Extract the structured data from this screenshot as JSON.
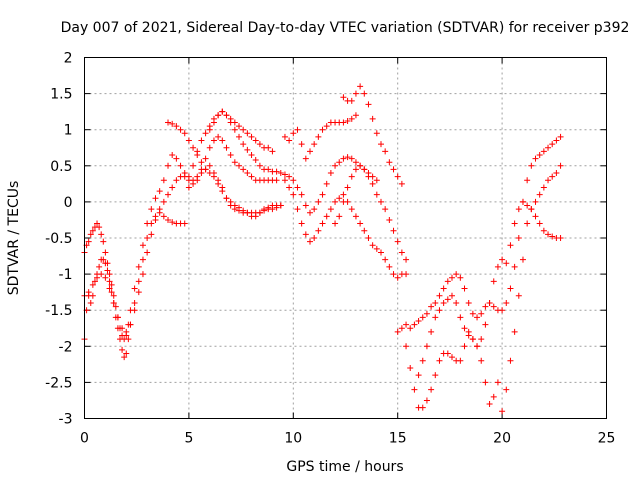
{
  "chart_data": {
    "type": "scatter",
    "title": "Day 007 of 2021, Sidereal Day-to-day VTEC variation (SDTVAR) for receiver p392",
    "xlabel": "GPS time / hours",
    "ylabel": "SDTVAR / TECUs",
    "xlim": [
      0,
      25
    ],
    "ylim": [
      -3,
      2
    ],
    "xticks": [
      0,
      5,
      10,
      15,
      20,
      25
    ],
    "yticks": [
      -3,
      -2.5,
      -2,
      -1.5,
      -1,
      -0.5,
      0,
      0.5,
      1,
      1.5,
      2
    ],
    "xtick_labels": [
      "0",
      "5",
      "10",
      "15",
      "20",
      "25"
    ],
    "ytick_labels": [
      "-3",
      "-2.5",
      "-2",
      "-1.5",
      "-1",
      "-0.5",
      "0",
      "0.5",
      "1",
      "1.5",
      "2"
    ],
    "grid": true,
    "marker": "plus",
    "color": "#ff0000",
    "series": [
      {
        "x": [
          0.0,
          0.1,
          0.2,
          0.3,
          0.4,
          0.5,
          0.6,
          0.7,
          0.8,
          0.9,
          1.0,
          1.1,
          1.2,
          1.3,
          1.4,
          1.5,
          1.6,
          1.7,
          1.8,
          1.9,
          2.0,
          2.1,
          2.2,
          2.4,
          2.6,
          2.8,
          3.0,
          3.2,
          3.4,
          3.6,
          3.8,
          4.0,
          4.2,
          4.4,
          4.6,
          4.8,
          5.0,
          5.2,
          5.4,
          5.6,
          5.8,
          6.0,
          6.2,
          6.4,
          6.6,
          6.8,
          7.0,
          7.2,
          7.4,
          7.6,
          7.8,
          8.0,
          8.2,
          8.4,
          8.6,
          8.8,
          9.0,
          9.2,
          9.4
        ],
        "y": [
          -1.9,
          -1.5,
          -1.3,
          -1.4,
          -1.3,
          -1.1,
          -1.0,
          -0.9,
          -0.8,
          -0.8,
          -0.85,
          -0.95,
          -1.1,
          -1.25,
          -1.4,
          -1.6,
          -1.75,
          -1.9,
          -2.05,
          -2.15,
          -2.1,
          -1.9,
          -1.7,
          -1.4,
          -1.1,
          -0.8,
          -0.5,
          -0.3,
          -0.2,
          -0.15,
          -0.2,
          -0.25,
          -0.28,
          -0.3,
          -0.3,
          -0.3,
          0.2,
          0.3,
          0.35,
          0.4,
          0.45,
          0.5,
          0.4,
          0.3,
          0.2,
          0.05,
          -0.05,
          -0.1,
          -0.12,
          -0.15,
          -0.15,
          -0.15,
          -0.15,
          -0.15,
          -0.12,
          -0.1,
          -0.1,
          -0.08,
          -0.05
        ]
      },
      {
        "x": [
          0.0,
          0.1,
          0.2,
          0.3,
          0.4,
          0.5,
          0.6,
          0.7,
          0.8,
          0.9,
          1.0,
          1.1,
          1.2,
          1.3,
          1.4,
          1.5,
          1.6,
          1.7,
          1.8,
          1.9,
          2.0,
          2.1,
          2.2,
          2.4,
          2.6,
          2.8,
          3.0,
          3.2,
          3.4,
          3.6,
          3.8,
          4.0,
          4.2,
          4.4,
          4.6,
          4.8,
          5.0,
          5.2,
          5.4,
          5.6,
          5.8,
          6.0,
          6.2,
          6.4,
          6.6,
          6.8,
          7.0,
          7.2,
          7.4,
          7.6,
          7.8,
          8.0,
          8.2,
          8.4,
          8.6,
          8.8,
          9.0
        ],
        "y": [
          -0.7,
          -0.6,
          -0.55,
          -0.45,
          -0.4,
          -0.35,
          -0.3,
          -0.35,
          -0.45,
          -0.55,
          -0.7,
          -0.85,
          -1.0,
          -1.15,
          -1.3,
          -1.45,
          -1.6,
          -1.75,
          -1.85,
          -1.9,
          -1.85,
          -1.7,
          -1.5,
          -1.2,
          -0.9,
          -0.6,
          -0.3,
          -0.1,
          0.05,
          0.15,
          0.3,
          0.5,
          0.65,
          0.6,
          0.5,
          0.4,
          0.35,
          0.5,
          0.7,
          0.85,
          0.95,
          1.05,
          1.15,
          1.2,
          1.25,
          1.2,
          1.15,
          1.1,
          1.05,
          1.0,
          0.95,
          0.9,
          0.85,
          0.8,
          0.75,
          0.75,
          0.7
        ]
      },
      {
        "x": [
          0.0,
          0.2,
          0.4,
          0.6,
          0.8,
          1.0,
          1.2,
          1.4,
          1.6,
          1.8,
          2.0,
          2.2,
          2.4,
          2.6,
          2.8,
          3.0,
          3.2,
          3.4,
          3.6,
          3.8,
          4.0,
          4.2,
          4.4,
          4.6,
          4.8,
          5.0,
          5.2,
          5.4,
          5.6,
          5.8,
          6.0,
          6.2,
          6.4,
          6.6,
          6.8,
          7.0,
          7.2,
          7.4,
          7.6,
          7.8,
          8.0,
          8.2,
          8.4,
          8.6,
          8.8,
          9.0,
          9.2
        ],
        "y": [
          -1.3,
          -1.25,
          -1.15,
          -1.05,
          -1.0,
          -1.05,
          -1.2,
          -1.4,
          -1.6,
          -1.75,
          -1.8,
          -1.7,
          -1.5,
          -1.25,
          -1.0,
          -0.7,
          -0.45,
          -0.25,
          -0.1,
          0.0,
          0.1,
          0.2,
          0.3,
          0.35,
          0.35,
          0.3,
          0.25,
          0.3,
          0.45,
          0.6,
          0.75,
          0.85,
          0.9,
          0.85,
          0.75,
          0.65,
          0.55,
          0.5,
          0.45,
          0.4,
          0.35,
          0.3,
          0.3,
          0.3,
          0.3,
          0.3,
          0.3
        ]
      },
      {
        "x": [
          4.0,
          4.2,
          4.4,
          4.6,
          4.8,
          5.0,
          5.2,
          5.4,
          5.6,
          5.8,
          6.0,
          6.2,
          6.4,
          6.6,
          6.8,
          7.0,
          7.2,
          7.4,
          7.6,
          7.8,
          8.0,
          8.2,
          8.4,
          8.6,
          8.8,
          9.0,
          9.2,
          9.4,
          9.6,
          9.8,
          10.0,
          10.2,
          10.4,
          10.6,
          10.8,
          11.0,
          11.2,
          11.4,
          11.6,
          11.8,
          12.0,
          12.2,
          12.4,
          12.6,
          12.8,
          13.0
        ],
        "y": [
          1.1,
          1.08,
          1.05,
          1.0,
          0.95,
          0.85,
          0.75,
          0.65,
          0.55,
          0.45,
          0.4,
          0.35,
          0.25,
          0.15,
          0.05,
          0.0,
          -0.05,
          -0.08,
          -0.12,
          -0.15,
          -0.2,
          -0.2,
          -0.15,
          -0.1,
          -0.08,
          -0.05,
          -0.05,
          -0.05,
          0.9,
          0.85,
          0.95,
          1.0,
          0.8,
          0.6,
          0.7,
          0.8,
          0.9,
          1.0,
          1.05,
          1.1,
          1.1,
          1.1,
          1.1,
          1.12,
          1.15,
          1.2
        ]
      },
      {
        "x": [
          6.0,
          6.2,
          6.4,
          6.6,
          6.8,
          7.0,
          7.2,
          7.4,
          7.6,
          7.8,
          8.0,
          8.2,
          8.4,
          8.6,
          8.8,
          9.0,
          9.2,
          9.4,
          9.6,
          9.8,
          10.0,
          10.2,
          10.4,
          10.6,
          10.8,
          11.0,
          11.2,
          11.4,
          11.6,
          11.8,
          12.0,
          12.2,
          12.4,
          12.6,
          12.8,
          13.0,
          13.2,
          13.4,
          13.6,
          13.8,
          14.0
        ],
        "y": [
          1.0,
          1.1,
          1.2,
          1.25,
          1.2,
          1.1,
          1.0,
          0.9,
          0.8,
          0.72,
          0.65,
          0.58,
          0.5,
          0.45,
          0.45,
          0.42,
          0.42,
          0.4,
          0.38,
          0.35,
          0.3,
          0.2,
          0.1,
          -0.05,
          -0.15,
          -0.1,
          0.0,
          0.1,
          0.25,
          0.4,
          0.5,
          0.55,
          0.6,
          0.62,
          0.6,
          0.55,
          0.5,
          0.45,
          0.4,
          0.35,
          0.3
        ]
      },
      {
        "x": [
          9.6,
          9.8,
          10.0,
          10.2,
          10.4,
          10.6,
          10.8,
          11.0,
          11.2,
          11.4,
          11.6,
          11.8,
          12.0,
          12.2,
          12.4,
          12.6,
          12.8,
          13.0,
          13.2,
          13.4,
          13.6,
          13.8,
          14.0,
          14.2,
          14.4,
          14.6,
          14.8,
          15.0,
          15.2,
          15.4
        ],
        "y": [
          0.3,
          0.2,
          0.1,
          -0.1,
          -0.3,
          -0.45,
          -0.55,
          -0.5,
          -0.4,
          -0.3,
          -0.2,
          -0.1,
          0.0,
          0.05,
          0.1,
          0.0,
          -0.1,
          -0.2,
          -0.3,
          -0.4,
          -0.5,
          -0.6,
          -0.65,
          -0.7,
          -0.8,
          -0.9,
          -1.0,
          -1.05,
          -1.0,
          -1.0
        ]
      },
      {
        "x": [
          12.0,
          12.2,
          12.4,
          12.6,
          12.8,
          13.0,
          13.2,
          13.4,
          13.6,
          13.8,
          14.0,
          14.2,
          14.4,
          14.6,
          14.8,
          15.0,
          15.2,
          15.4
        ],
        "y": [
          -0.3,
          -0.2,
          0.0,
          0.2,
          0.35,
          0.45,
          0.5,
          0.45,
          0.35,
          0.25,
          0.1,
          0.0,
          -0.1,
          -0.25,
          -0.4,
          -0.55,
          -0.7,
          -0.8
        ]
      },
      {
        "x": [
          12.4,
          12.6,
          12.8,
          13.0,
          13.2,
          13.4,
          13.6,
          13.8,
          14.0,
          14.2,
          14.4,
          14.6,
          14.8,
          15.0,
          15.2
        ],
        "y": [
          1.45,
          1.4,
          1.4,
          1.5,
          1.6,
          1.5,
          1.35,
          1.15,
          0.95,
          0.8,
          0.7,
          0.55,
          0.45,
          0.35,
          0.25
        ]
      },
      {
        "x": [
          15.0,
          15.2,
          15.4,
          15.6,
          15.8,
          16.0,
          16.2,
          16.4,
          16.6,
          16.8,
          17.0,
          17.2,
          17.4,
          17.6,
          17.8,
          18.0,
          18.2,
          18.4,
          18.6,
          18.8,
          19.0,
          19.2,
          19.4,
          19.6,
          19.8,
          20.0,
          20.2,
          20.4,
          20.6,
          20.8,
          21.0,
          21.2,
          21.4,
          21.6,
          21.8,
          22.0,
          22.2,
          22.4,
          22.6,
          22.8
        ],
        "y": [
          -1.8,
          -1.75,
          -1.7,
          -1.75,
          -1.7,
          -1.65,
          -1.6,
          -1.55,
          -1.45,
          -1.4,
          -1.3,
          -1.2,
          -1.1,
          -1.05,
          -1.0,
          -1.05,
          -1.2,
          -1.4,
          -1.55,
          -1.6,
          -1.55,
          -1.45,
          -1.4,
          -1.45,
          -1.5,
          -1.5,
          -1.4,
          -1.2,
          -0.9,
          -0.5,
          0.0,
          0.3,
          0.5,
          0.6,
          0.65,
          0.7,
          0.75,
          0.8,
          0.85,
          0.9
        ]
      },
      {
        "x": [
          15.4,
          15.6,
          15.8,
          16.0,
          16.2,
          16.4,
          16.6,
          16.8,
          17.0,
          17.2,
          17.4,
          17.6,
          17.8,
          18.0,
          18.2,
          18.4,
          18.6,
          18.8,
          19.0,
          19.2,
          19.4,
          19.6,
          19.8,
          20.0,
          20.2,
          20.4,
          20.6,
          20.8,
          21.0,
          21.2,
          21.4,
          21.6,
          21.8,
          22.0,
          22.2,
          22.4,
          22.6,
          22.8
        ],
        "y": [
          -2.0,
          -2.3,
          -2.6,
          -2.85,
          -2.85,
          -2.75,
          -2.6,
          -2.4,
          -2.2,
          -2.1,
          -2.1,
          -2.15,
          -2.2,
          -2.2,
          -2.0,
          -1.8,
          -1.9,
          -2.0,
          -2.2,
          -2.5,
          -2.8,
          -2.7,
          -2.5,
          -2.9,
          -2.6,
          -2.2,
          -1.8,
          -1.3,
          -0.8,
          -0.3,
          -0.1,
          0.0,
          0.1,
          0.2,
          0.3,
          0.35,
          0.4,
          0.5
        ]
      },
      {
        "x": [
          16.0,
          16.2,
          16.4,
          16.6,
          16.8,
          17.0,
          17.2,
          17.4,
          17.6,
          17.8,
          18.0,
          18.2,
          18.4,
          18.6,
          18.8,
          19.0,
          19.2,
          19.4,
          19.6,
          19.8,
          20.0,
          20.2,
          20.4,
          20.6,
          20.8,
          21.0,
          21.2,
          21.4,
          21.6,
          21.8,
          22.0,
          22.2,
          22.4,
          22.6,
          22.8
        ],
        "y": [
          -2.4,
          -2.2,
          -2.0,
          -1.8,
          -1.6,
          -1.5,
          -1.4,
          -1.35,
          -1.3,
          -1.4,
          -1.6,
          -1.75,
          -1.85,
          -1.9,
          -2.0,
          -1.9,
          -1.7,
          -1.4,
          -1.1,
          -0.9,
          -0.8,
          -0.85,
          -0.6,
          -0.3,
          -0.1,
          0.0,
          -0.05,
          -0.1,
          -0.2,
          -0.3,
          -0.4,
          -0.45,
          -0.48,
          -0.5,
          -0.5
        ]
      }
    ]
  }
}
